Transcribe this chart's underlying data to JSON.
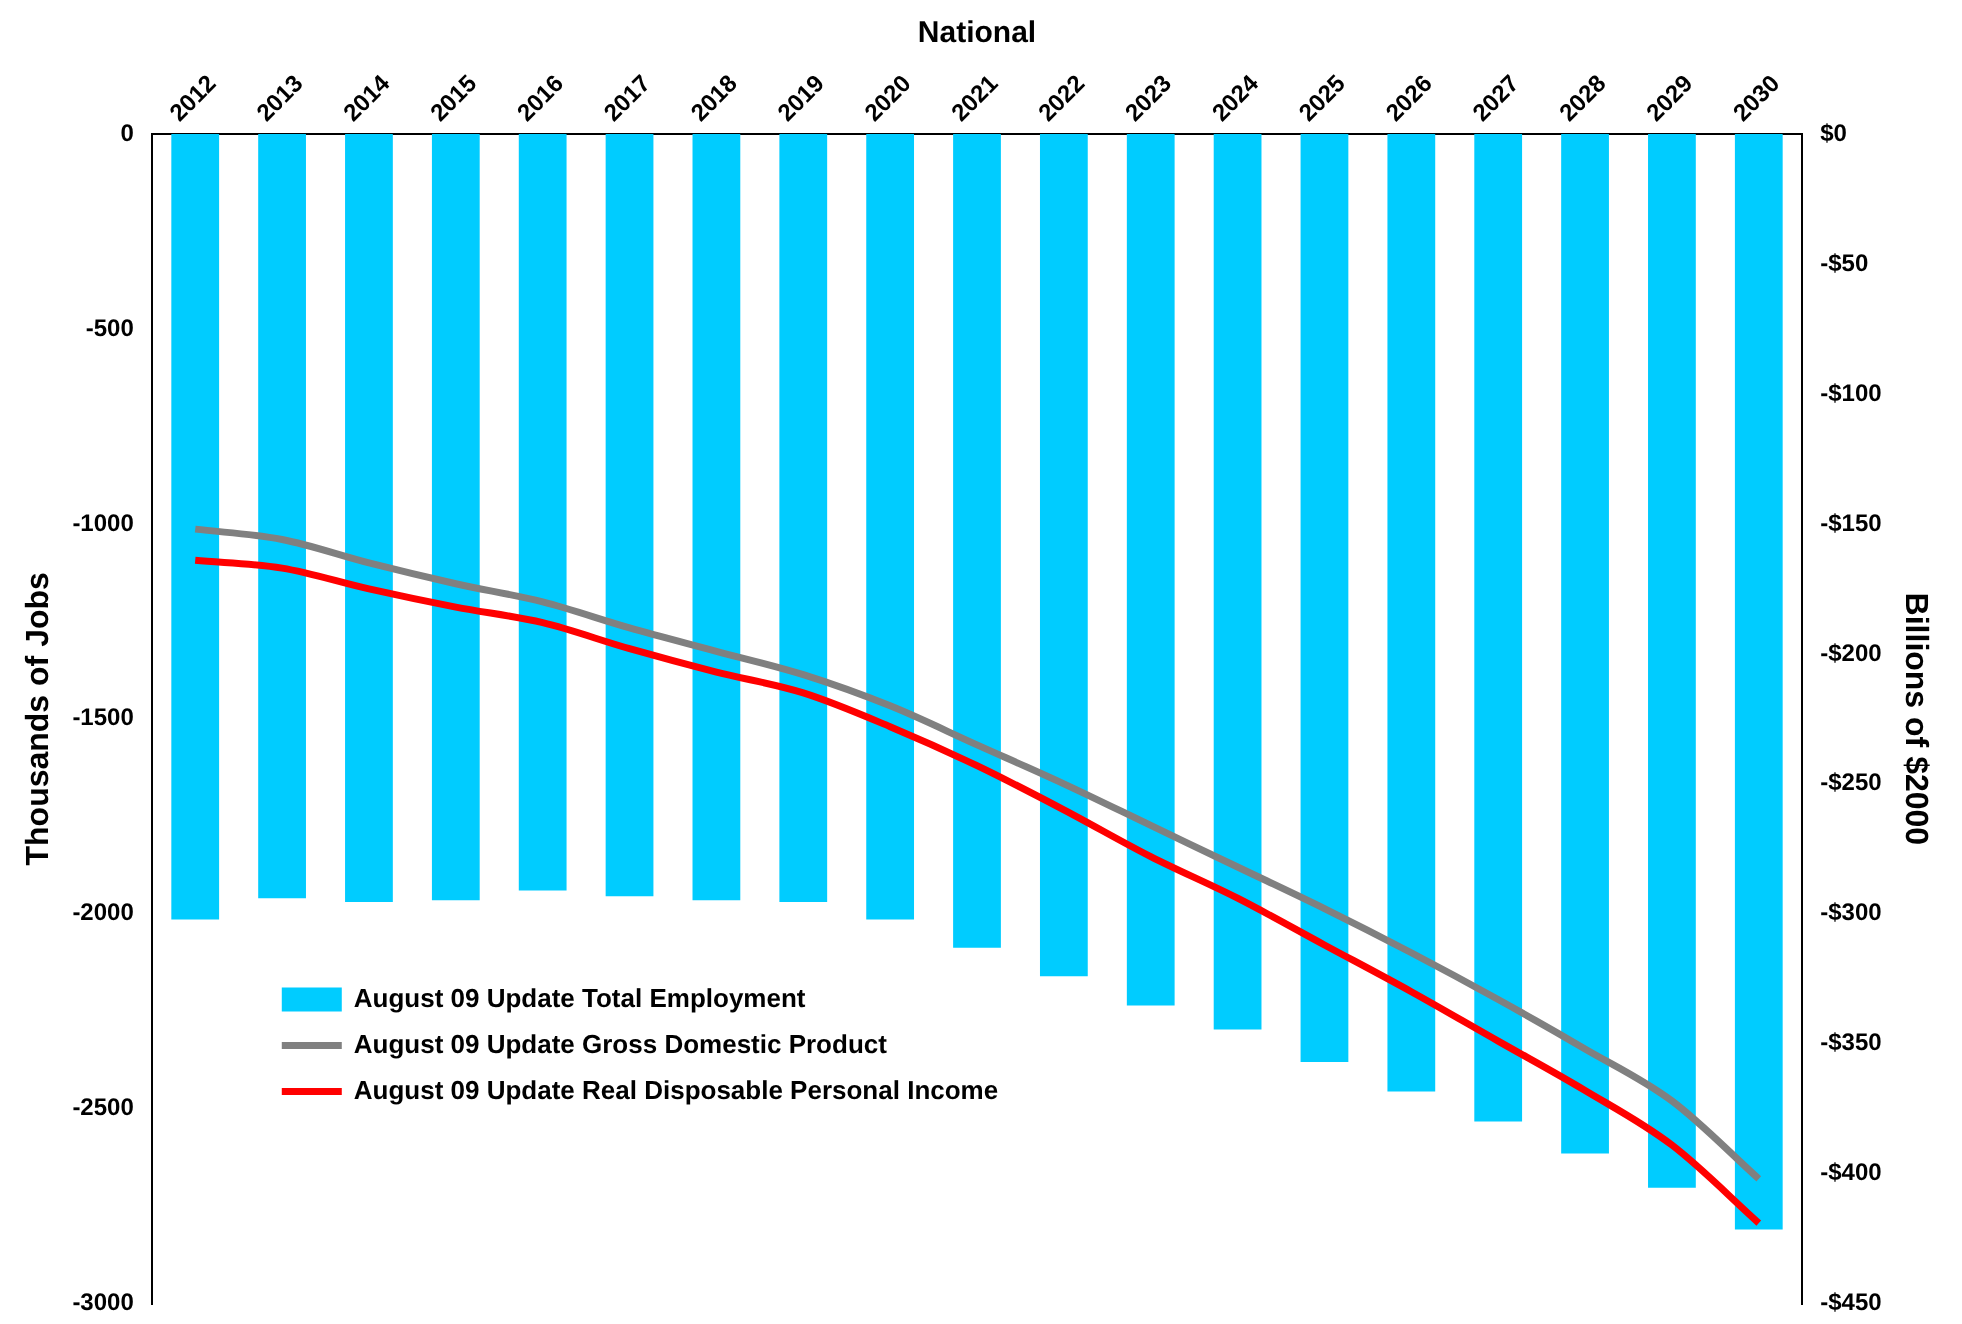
{
  "chart_data": {
    "type": "bar",
    "title": "National",
    "ylabel": "Thousands of Jobs",
    "y2label": "Billions of $2000",
    "categories": [
      "2012",
      "2013",
      "2014",
      "2015",
      "2016",
      "2017",
      "2018",
      "2019",
      "2020",
      "2021",
      "2022",
      "2023",
      "2024",
      "2025",
      "2026",
      "2027",
      "2028",
      "2029",
      "2030"
    ],
    "series": [
      {
        "name": "August 09 Update Total Employment",
        "color": "#00ccff",
        "values": [
          -2015,
          -1960,
          -1970,
          -1965,
          -1940,
          -1955,
          -1965,
          -1970,
          -2015,
          -2087,
          -2160,
          -2235,
          -2297,
          -2380,
          -2456,
          -2533,
          -2615,
          -2703,
          -2810
        ]
      },
      {
        "name": "August 09 Update Gross Domestic Product",
        "type": "line",
        "axis": "y2",
        "color": "#808080",
        "values": [
          -152,
          -156,
          -165,
          -173,
          -180,
          -190,
          -199,
          -208,
          -220,
          -235,
          -250,
          -266,
          -282,
          -298,
          -315,
          -333,
          -352,
          -372,
          -402
        ]
      },
      {
        "name": "August 09 Update Real Disposable Personal Income",
        "type": "line",
        "axis": "y2",
        "color": "#ff0000",
        "values": [
          -164,
          -167,
          -175,
          -182,
          -188,
          -198,
          -207,
          -215,
          -228,
          -243,
          -260,
          -278,
          -294,
          -312,
          -330,
          -349,
          -368,
          -389,
          -419
        ]
      }
    ],
    "ylim": [
      -3000,
      0
    ],
    "yticks": [
      -3000,
      -2500,
      -2000,
      -1500,
      -1000,
      -500,
      0
    ],
    "y2lim": [
      -450,
      0
    ],
    "y2ticks": [
      {
        "value": -450,
        "label": "-$450"
      },
      {
        "value": -400,
        "label": "-$400"
      },
      {
        "value": -350,
        "label": "-$350"
      },
      {
        "value": -300,
        "label": "-$300"
      },
      {
        "value": -250,
        "label": "-$250"
      },
      {
        "value": -200,
        "label": "-$200"
      },
      {
        "value": -150,
        "label": "-$150"
      },
      {
        "value": -100,
        "label": "-$100"
      },
      {
        "value": -50,
        "label": "-$50"
      },
      {
        "value": 0,
        "label": "$0"
      }
    ],
    "grid": false,
    "legend": "bottom left",
    "marker": "none",
    "line_style": "solid"
  }
}
